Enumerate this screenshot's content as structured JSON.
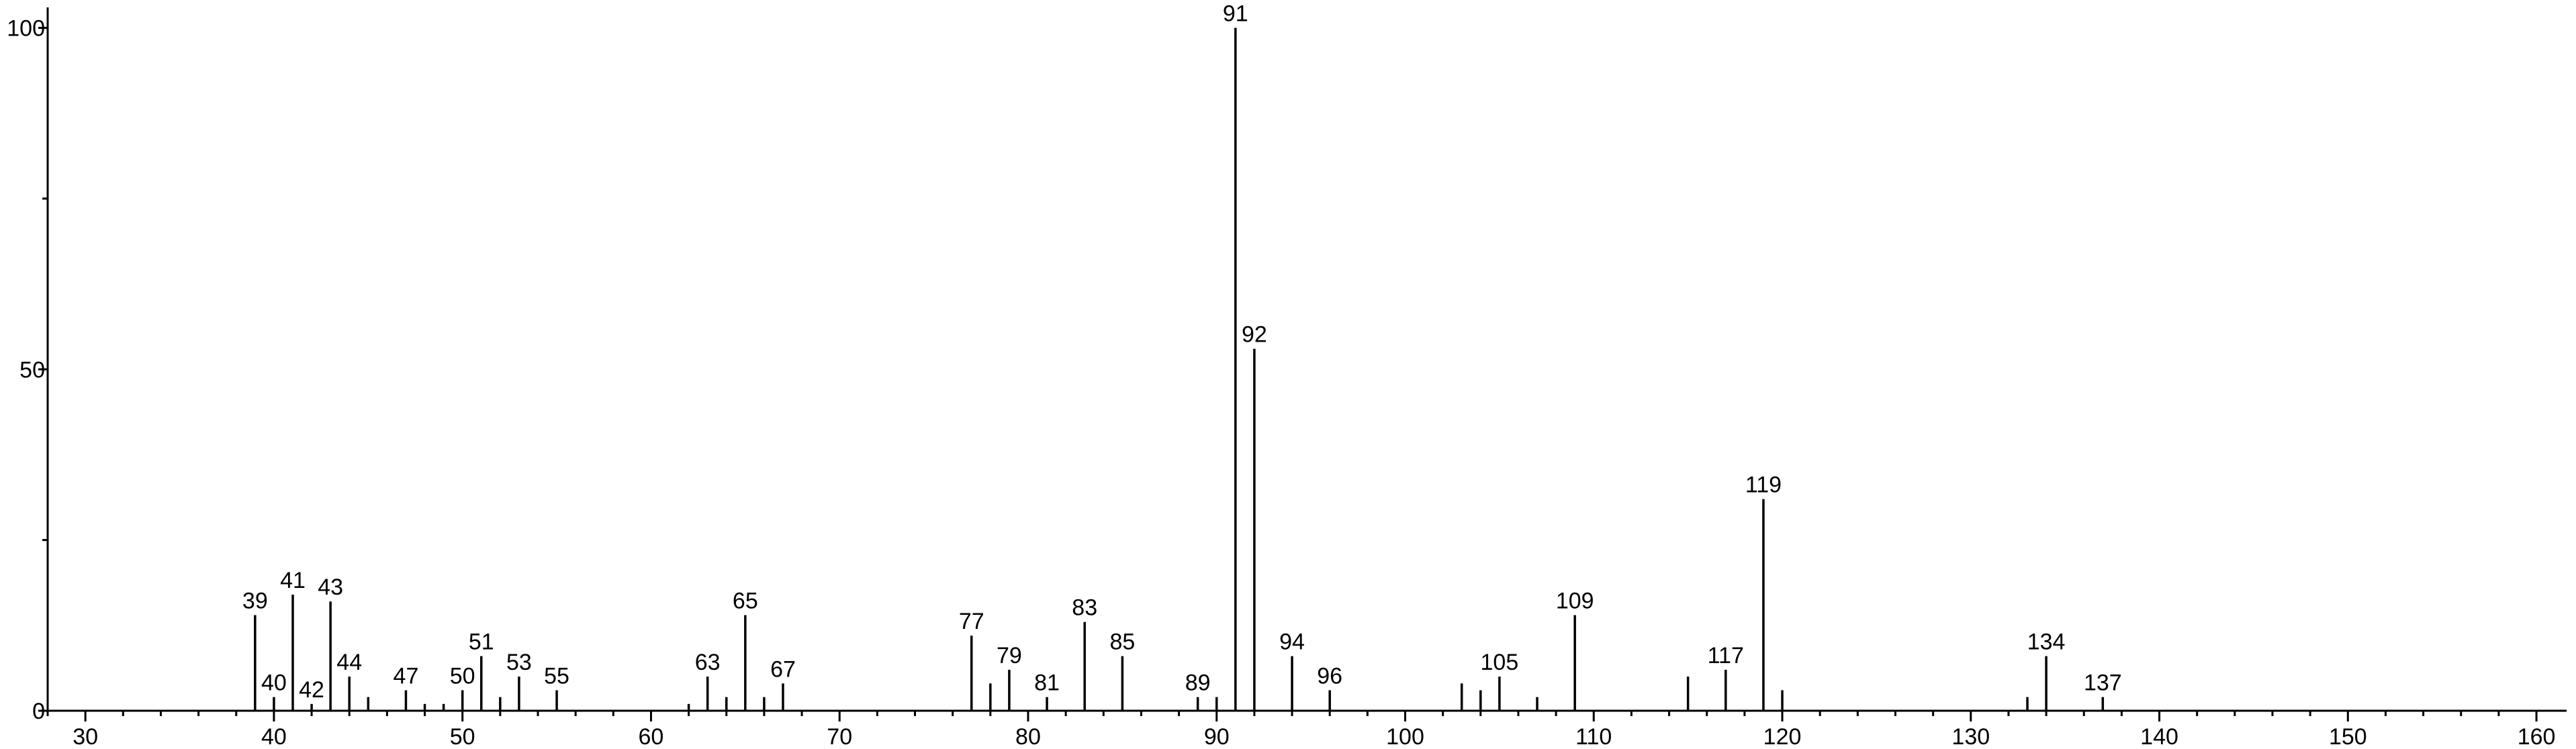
{
  "chart_data": {
    "type": "stem",
    "x": [
      39,
      40,
      41,
      42,
      43,
      44,
      45,
      47,
      48,
      49,
      50,
      51,
      52,
      53,
      55,
      62,
      63,
      64,
      65,
      66,
      67,
      77,
      78,
      79,
      81,
      83,
      85,
      89,
      90,
      91,
      92,
      94,
      96,
      103,
      104,
      105,
      107,
      109,
      115,
      117,
      119,
      120,
      133,
      134,
      137
    ],
    "values": [
      14,
      2,
      17,
      1,
      16,
      5,
      2,
      3,
      1,
      1,
      3,
      8,
      2,
      5,
      3,
      1,
      5,
      2,
      14,
      2,
      4,
      11,
      4,
      6,
      2,
      13,
      8,
      2,
      2,
      100,
      53,
      8,
      3,
      4,
      3,
      5,
      2,
      14,
      5,
      6,
      31,
      3,
      2,
      8,
      2
    ],
    "x_labels": [
      "39",
      "40",
      "41",
      "42",
      "43",
      "44",
      null,
      "47",
      null,
      null,
      "50",
      "51",
      null,
      "53",
      "55",
      null,
      "63",
      null,
      "65",
      null,
      "67",
      "77",
      null,
      "79",
      "81",
      "83",
      "85",
      "89",
      null,
      "91",
      "92",
      "94",
      "96",
      null,
      null,
      "105",
      null,
      "109",
      null,
      "117",
      "119",
      null,
      null,
      "134",
      "137"
    ],
    "color": "#000000",
    "xlim": [
      28,
      161.6
    ],
    "ylim": [
      0,
      103
    ],
    "xticks": [
      30,
      40,
      50,
      60,
      70,
      80,
      90,
      100,
      110,
      120,
      130,
      140,
      150,
      160
    ],
    "xminorticks": [
      28,
      32,
      34,
      36,
      38,
      42,
      44,
      46,
      48,
      52,
      54,
      56,
      58,
      62,
      64,
      66,
      68,
      72,
      74,
      76,
      78,
      82,
      84,
      86,
      88,
      92,
      94,
      96,
      98,
      102,
      104,
      106,
      108,
      112,
      114,
      116,
      118,
      122,
      124,
      126,
      128,
      132,
      134,
      136,
      138,
      142,
      144,
      146,
      148,
      152,
      154,
      156,
      158
    ],
    "yticks": [
      0,
      50,
      100
    ],
    "yminorticks": [
      25,
      75
    ]
  }
}
